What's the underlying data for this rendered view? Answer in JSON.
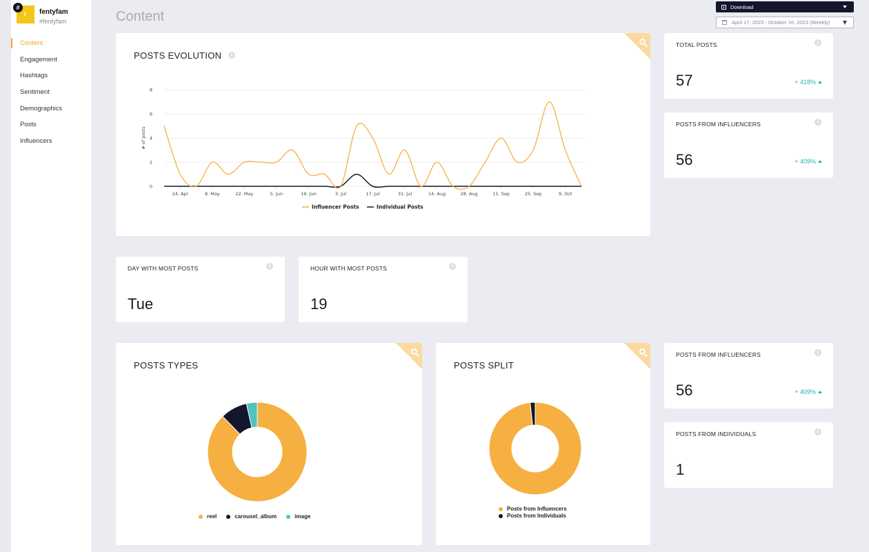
{
  "brand": {
    "badge": "#",
    "avatar_letter": "F",
    "name": "fentyfam",
    "handle": "#fentyfam"
  },
  "sidebar": {
    "items": [
      {
        "label": "Content",
        "active": true
      },
      {
        "label": "Engagement",
        "active": false
      },
      {
        "label": "Hashtags",
        "active": false
      },
      {
        "label": "Sentiment",
        "active": false
      },
      {
        "label": "Demographics",
        "active": false
      },
      {
        "label": "Posts",
        "active": false
      },
      {
        "label": "Influencers",
        "active": false
      }
    ]
  },
  "page": {
    "title": "Content"
  },
  "toolbar": {
    "download_label": "Download",
    "date_range": "April 17, 2023 - October 16, 2023 (Weekly)"
  },
  "colors": {
    "accent": "#f5a623",
    "influencer": "#f5b041",
    "individual": "#14162c",
    "image": "#4fc3c0",
    "positive": "#27b3a8"
  },
  "cards": {
    "posts_evolution": {
      "title": "POSTS EVOLUTION"
    },
    "total_posts": {
      "label": "TOTAL POSTS",
      "value": "57",
      "change": "+ 418%"
    },
    "posts_from_influencers": {
      "label": "POSTS FROM INFLUENCERS",
      "value": "56",
      "change": "+ 409%"
    },
    "day_most_posts": {
      "label": "DAY WITH MOST POSTS",
      "value": "Tue"
    },
    "hour_most_posts": {
      "label": "HOUR WITH MOST POSTS",
      "value": "19"
    },
    "posts_types": {
      "title": "POSTS TYPES"
    },
    "posts_split": {
      "title": "POSTS SPLIT"
    },
    "posts_from_influencers_2": {
      "label": "POSTS FROM INFLUENCERS",
      "value": "56",
      "change": "+ 409%"
    },
    "posts_from_individuals": {
      "label": "POSTS FROM INDIVIDUALS",
      "value": "1"
    }
  },
  "chart_data": [
    {
      "type": "line",
      "title": "POSTS EVOLUTION",
      "ylabel": "# of posts",
      "ylim": [
        0,
        8
      ],
      "yticks": [
        0,
        2,
        4,
        6,
        8
      ],
      "x_tick_labels": [
        "24. Apr",
        "8. May",
        "22. May",
        "5. Jun",
        "19. Jun",
        "3. Jul",
        "17. Jul",
        "31. Jul",
        "14. Aug",
        "28. Aug",
        "11. Sep",
        "25. Sep",
        "9. Oct"
      ],
      "x": [
        "17. Apr",
        "24. Apr",
        "1. May",
        "8. May",
        "15. May",
        "22. May",
        "29. May",
        "5. Jun",
        "12. Jun",
        "19. Jun",
        "26. Jun",
        "3. Jul",
        "10. Jul",
        "17. Jul",
        "24. Jul",
        "31. Jul",
        "7. Aug",
        "14. Aug",
        "21. Aug",
        "28. Aug",
        "4. Sep",
        "11. Sep",
        "18. Sep",
        "25. Sep",
        "2. Oct",
        "9. Oct",
        "16. Oct"
      ],
      "series": [
        {
          "name": "Influencer Posts",
          "color": "#f5b041",
          "values": [
            5,
            1,
            0,
            2,
            1,
            2,
            2,
            2,
            3,
            1,
            1,
            0,
            5,
            4,
            1,
            3,
            0,
            2,
            0,
            0,
            2,
            4,
            2,
            3,
            7,
            3,
            0
          ]
        },
        {
          "name": "Individual Posts",
          "color": "#14162c",
          "values": [
            0,
            0,
            0,
            0,
            0,
            0,
            0,
            0,
            0,
            0,
            0,
            0,
            1,
            0,
            0,
            0,
            0,
            0,
            0,
            0,
            0,
            0,
            0,
            0,
            0,
            0,
            0
          ]
        }
      ],
      "legend": "bottom-center",
      "grid": true
    },
    {
      "type": "pie",
      "title": "POSTS TYPES",
      "donut": true,
      "categories": [
        "reel",
        "carousel_album",
        "image"
      ],
      "values": [
        50,
        5,
        2
      ],
      "colors": [
        "#f5b041",
        "#14162c",
        "#4fc3c0"
      ],
      "legend": "bottom-center"
    },
    {
      "type": "pie",
      "title": "POSTS SPLIT",
      "donut": true,
      "categories": [
        "Posts from Influencers",
        "Posts from Individuals"
      ],
      "values": [
        56,
        1
      ],
      "colors": [
        "#f5b041",
        "#14162c"
      ],
      "legend": "bottom-center"
    }
  ]
}
